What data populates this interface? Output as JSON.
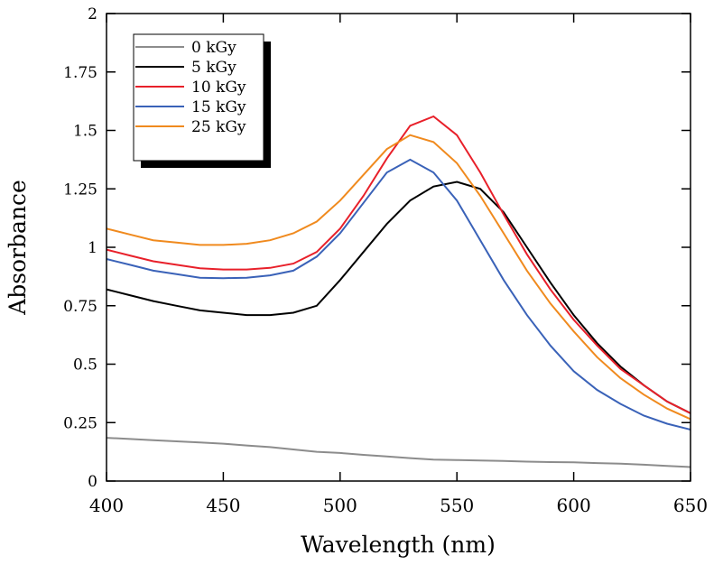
{
  "chart_data": {
    "type": "line",
    "x_label": "Wavelength (nm)",
    "y_label": "Absorbance",
    "x": [
      400,
      410,
      420,
      430,
      440,
      450,
      460,
      470,
      480,
      490,
      500,
      510,
      520,
      530,
      540,
      550,
      560,
      570,
      580,
      590,
      600,
      610,
      620,
      630,
      640,
      650
    ],
    "series": [
      {
        "name": "0 kGy",
        "color": "#8c8c8c",
        "values": [
          0.185,
          0.18,
          0.175,
          0.17,
          0.165,
          0.16,
          0.152,
          0.145,
          0.135,
          0.125,
          0.12,
          0.112,
          0.105,
          0.098,
          0.092,
          0.09,
          0.088,
          0.086,
          0.083,
          0.081,
          0.08,
          0.077,
          0.074,
          0.07,
          0.065,
          0.06
        ]
      },
      {
        "name": "5 kGy",
        "color": "#000000",
        "values": [
          0.82,
          0.795,
          0.77,
          0.75,
          0.73,
          0.72,
          0.71,
          0.71,
          0.72,
          0.75,
          0.86,
          0.98,
          1.1,
          1.2,
          1.26,
          1.28,
          1.25,
          1.15,
          1.0,
          0.85,
          0.71,
          0.59,
          0.49,
          0.41,
          0.34,
          0.29
        ]
      },
      {
        "name": "10 kGy",
        "color": "#e8202a",
        "values": [
          0.99,
          0.965,
          0.94,
          0.925,
          0.91,
          0.905,
          0.905,
          0.912,
          0.93,
          0.98,
          1.08,
          1.22,
          1.38,
          1.52,
          1.56,
          1.48,
          1.32,
          1.14,
          0.97,
          0.82,
          0.69,
          0.58,
          0.48,
          0.41,
          0.34,
          0.29
        ]
      },
      {
        "name": "15 kGy",
        "color": "#3a62b8",
        "values": [
          0.95,
          0.925,
          0.9,
          0.885,
          0.87,
          0.868,
          0.87,
          0.88,
          0.9,
          0.96,
          1.06,
          1.19,
          1.32,
          1.375,
          1.32,
          1.2,
          1.03,
          0.86,
          0.71,
          0.58,
          0.47,
          0.39,
          0.33,
          0.28,
          0.245,
          0.22
        ]
      },
      {
        "name": "25 kGy",
        "color": "#f08a1e",
        "values": [
          1.08,
          1.055,
          1.03,
          1.02,
          1.01,
          1.01,
          1.015,
          1.03,
          1.06,
          1.11,
          1.2,
          1.31,
          1.42,
          1.48,
          1.45,
          1.36,
          1.22,
          1.06,
          0.9,
          0.76,
          0.64,
          0.53,
          0.44,
          0.37,
          0.31,
          0.265
        ]
      }
    ],
    "xlim": [
      400,
      650
    ],
    "xticks": [
      400,
      450,
      500,
      550,
      600,
      650
    ],
    "ylim": [
      0,
      2
    ],
    "yticks": [
      0,
      0.25,
      0.5,
      0.75,
      1,
      1.25,
      1.5,
      1.75,
      2
    ]
  }
}
